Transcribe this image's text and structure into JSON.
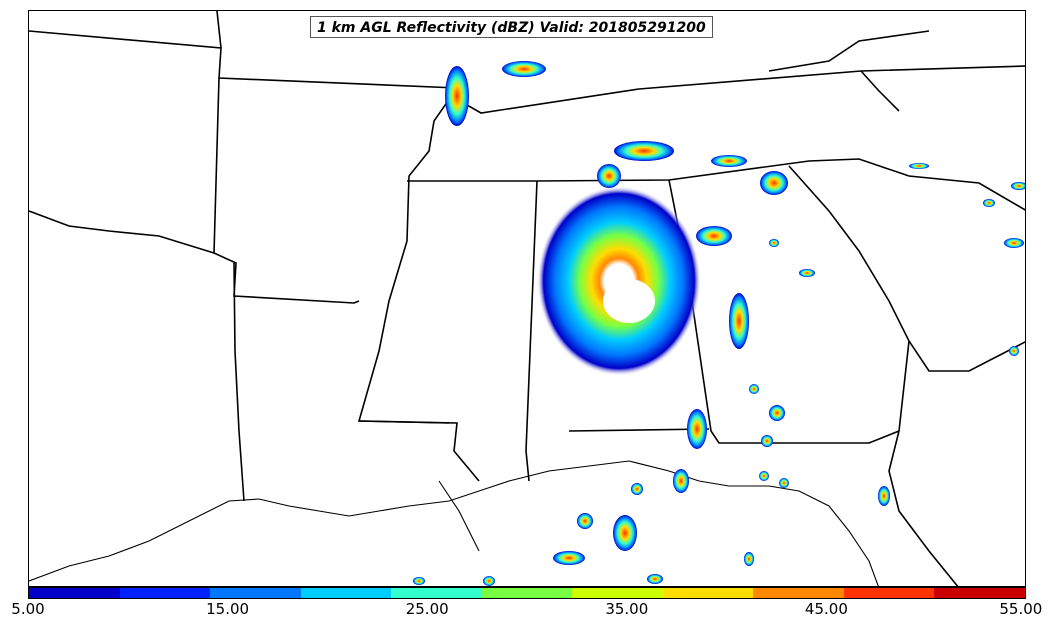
{
  "title": "1 km AGL Reflectivity (dBZ) Valid: 201805291200",
  "colorbar": {
    "tick_labels": [
      "5.00",
      "15.00",
      "25.00",
      "35.00",
      "45.00",
      "55.00"
    ],
    "colors": [
      "#0000c8",
      "#0022ff",
      "#0077ff",
      "#00ccff",
      "#33ffcc",
      "#77ff44",
      "#ccff00",
      "#ffdd00",
      "#ff8800",
      "#ff3300",
      "#c80000"
    ]
  }
}
